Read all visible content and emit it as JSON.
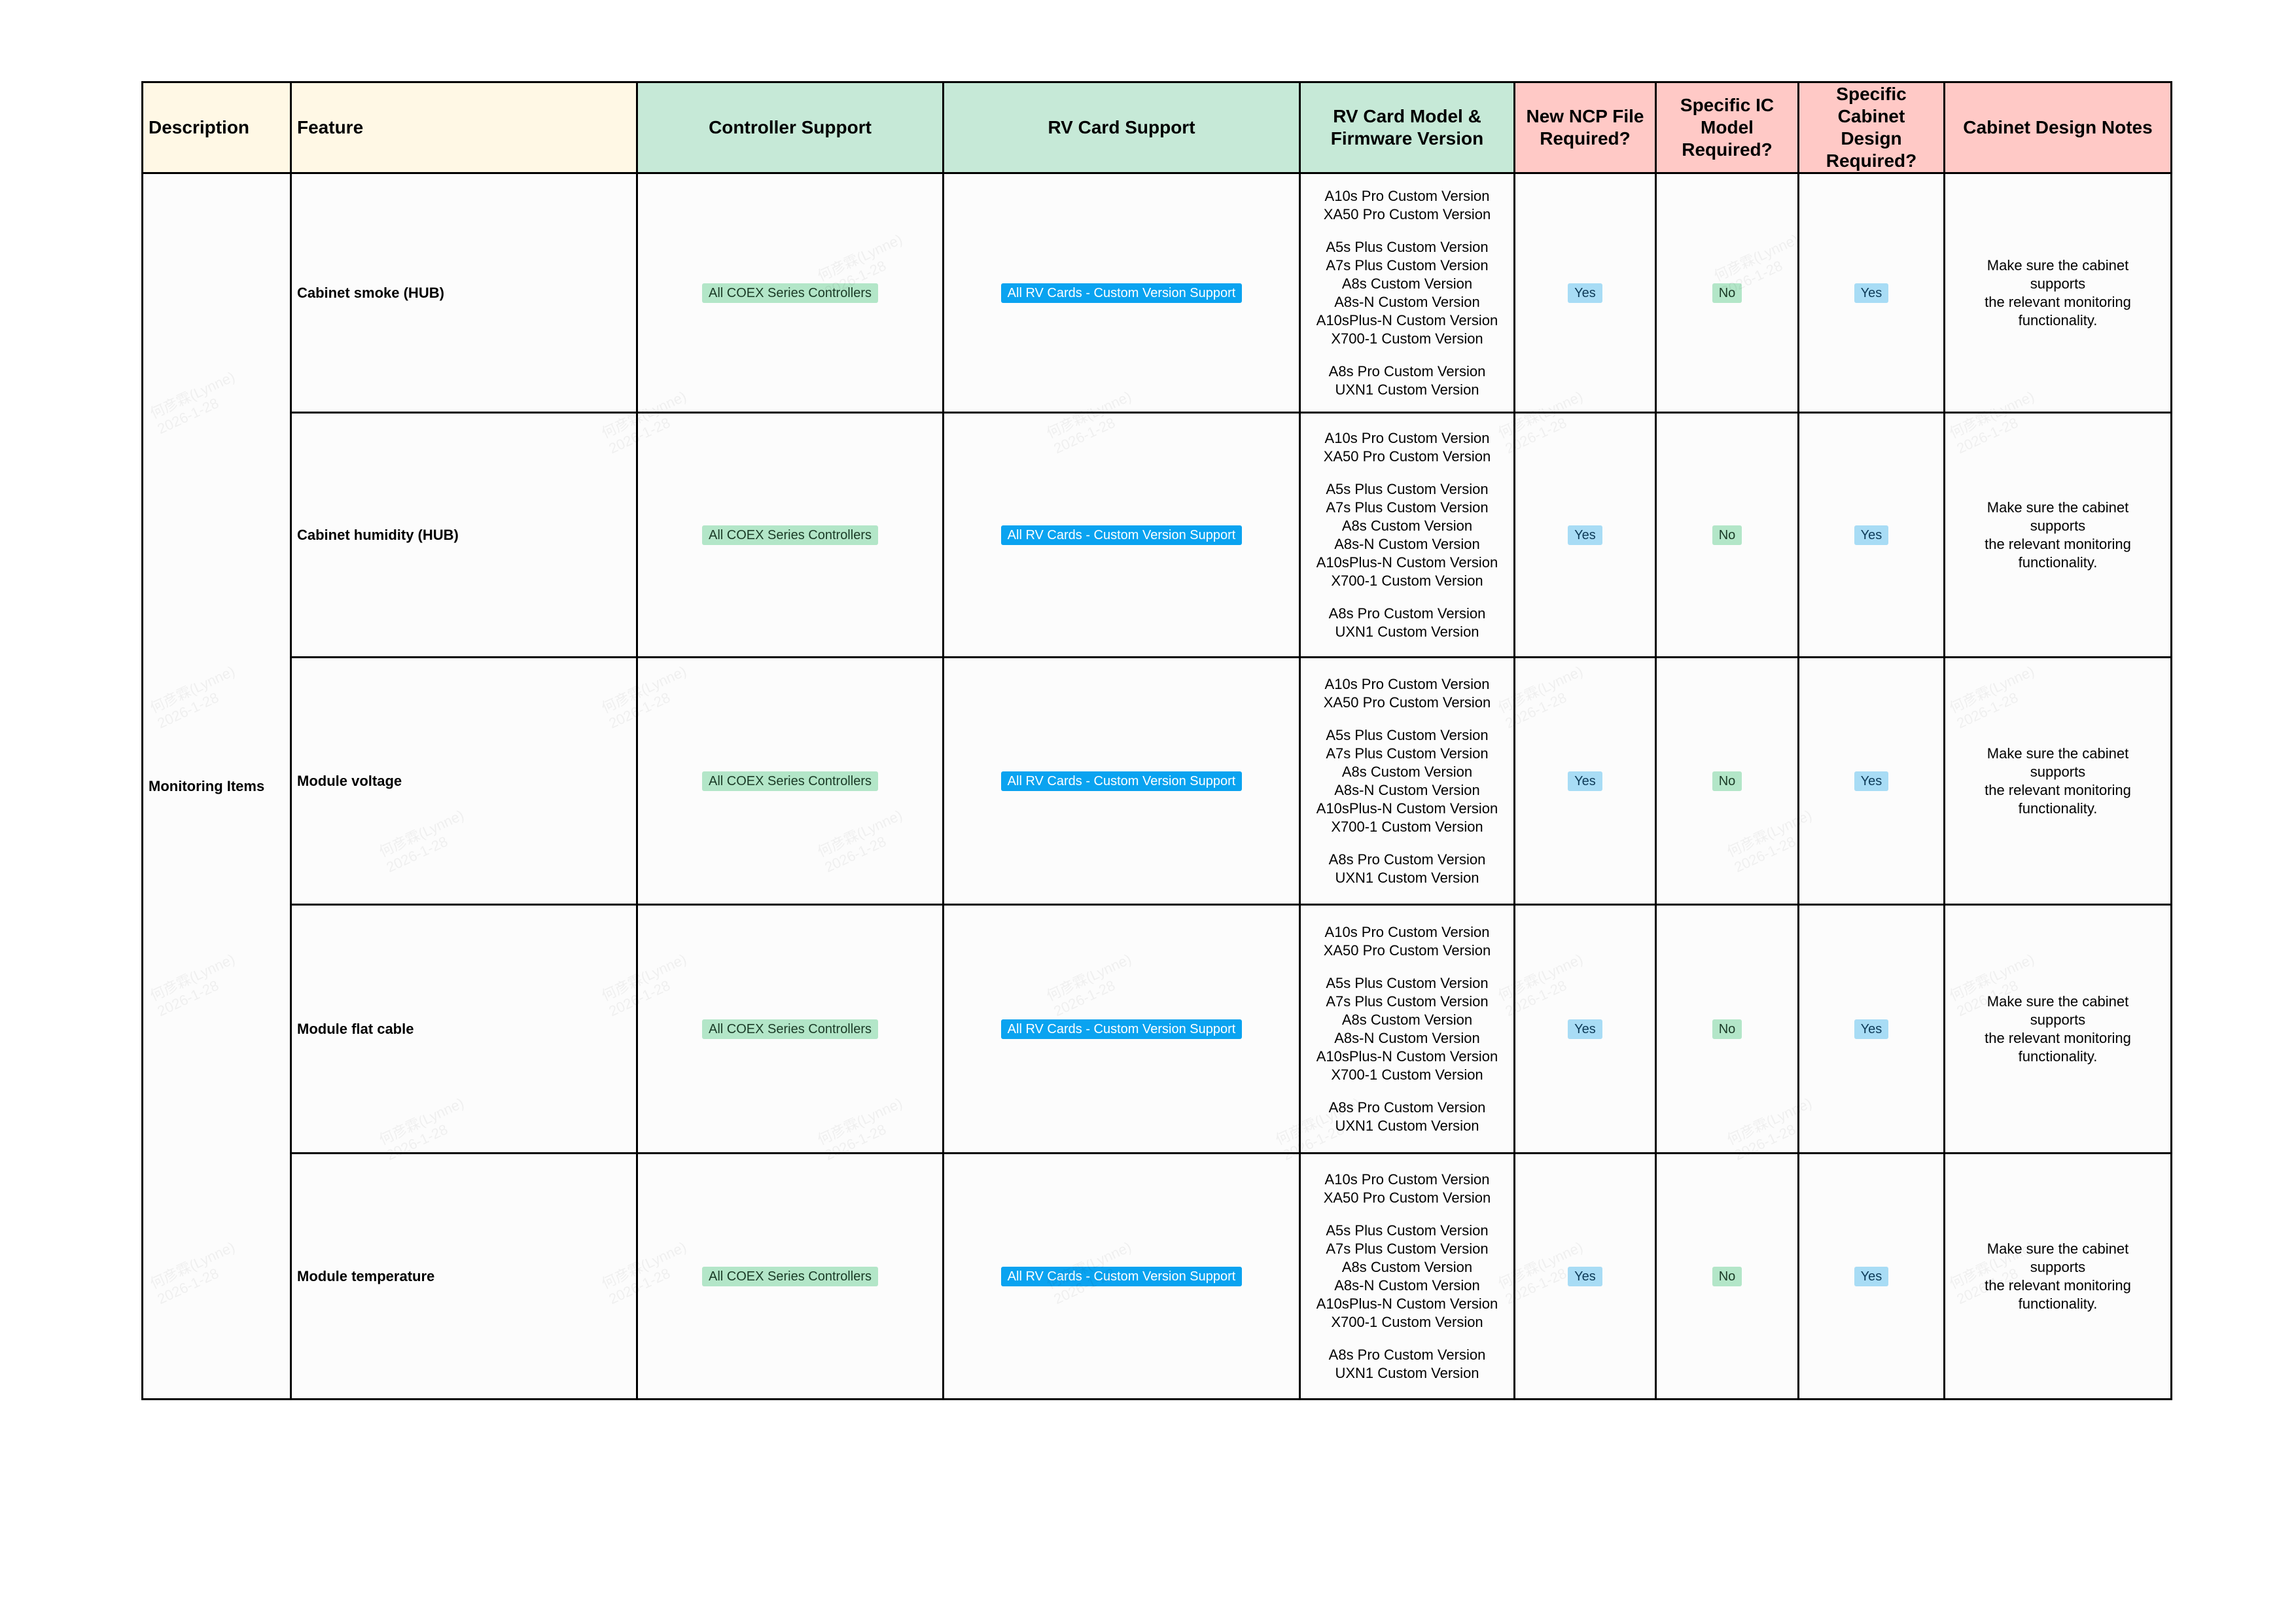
{
  "headers": {
    "description": "Description",
    "feature": "Feature",
    "controller_support": "Controller Support",
    "rv_card_support": "RV Card Support",
    "rv_card_model": "RV Card Model & Firmware Version",
    "new_ncp": "New NCP File Required?",
    "specific_ic": "Specific IC Model Required?",
    "specific_cabinet": "Specific Cabinet Design Required?",
    "cabinet_notes": "Cabinet Design Notes"
  },
  "description": "Monitoring Items",
  "rows": [
    {
      "feature": "Cabinet smoke (HUB)",
      "controller": "All COEX Series Controllers",
      "rv_card": "All RV Cards - Custom Version Support",
      "versions": [
        [
          "A10s Pro Custom Version",
          "XA50 Pro Custom Version"
        ],
        [
          "A5s Plus Custom Version",
          "A7s Plus Custom Version",
          "A8s Custom Version",
          "A8s-N Custom Version",
          "A10sPlus-N Custom Version",
          "X700-1 Custom Version"
        ],
        [
          "A8s Pro Custom Version",
          "UXN1 Custom Version"
        ]
      ],
      "ncp": "Yes",
      "ic": "No",
      "cabinet": "Yes",
      "notes": [
        "Make sure the cabinet",
        "supports",
        "the relevant monitoring",
        "functionality."
      ]
    },
    {
      "feature": "Cabinet humidity (HUB)",
      "controller": "All COEX Series Controllers",
      "rv_card": "All RV Cards - Custom Version Support",
      "versions": [
        [
          "A10s Pro Custom Version",
          "XA50 Pro Custom Version"
        ],
        [
          "A5s Plus Custom Version",
          "A7s Plus Custom Version",
          "A8s Custom Version",
          "A8s-N Custom Version",
          "A10sPlus-N Custom Version",
          "X700-1 Custom Version"
        ],
        [
          "A8s Pro Custom Version",
          "UXN1 Custom Version"
        ]
      ],
      "ncp": "Yes",
      "ic": "No",
      "cabinet": "Yes",
      "notes": [
        "Make sure the cabinet",
        "supports",
        "the relevant monitoring",
        "functionality."
      ]
    },
    {
      "feature": "Module voltage",
      "controller": "All COEX Series Controllers",
      "rv_card": "All RV Cards - Custom Version Support",
      "versions": [
        [
          "A10s Pro Custom Version",
          "XA50 Pro Custom Version"
        ],
        [
          "A5s Plus Custom Version",
          "A7s Plus Custom Version",
          "A8s Custom Version",
          "A8s-N Custom Version",
          "A10sPlus-N Custom Version",
          "X700-1 Custom Version"
        ],
        [
          "A8s Pro Custom Version",
          "UXN1 Custom Version"
        ]
      ],
      "ncp": "Yes",
      "ic": "No",
      "cabinet": "Yes",
      "notes": [
        "Make sure the cabinet",
        "supports",
        "the relevant monitoring",
        "functionality."
      ]
    },
    {
      "feature": "Module flat cable",
      "controller": "All COEX Series Controllers",
      "rv_card": "All RV Cards - Custom Version Support",
      "versions": [
        [
          "A10s Pro Custom Version",
          "XA50 Pro Custom Version"
        ],
        [
          "A5s Plus Custom Version",
          "A7s Plus Custom Version",
          "A8s Custom Version",
          "A8s-N Custom Version",
          "A10sPlus-N Custom Version",
          "X700-1 Custom Version"
        ],
        [
          "A8s Pro Custom Version",
          "UXN1 Custom Version"
        ]
      ],
      "ncp": "Yes",
      "ic": "No",
      "cabinet": "Yes",
      "notes": [
        "Make sure the cabinet",
        "supports",
        "the relevant monitoring",
        "functionality."
      ]
    },
    {
      "feature": "Module temperature",
      "controller": "All COEX Series Controllers",
      "rv_card": "All RV Cards - Custom Version Support",
      "versions": [
        [
          "A10s Pro Custom Version",
          "XA50 Pro Custom Version"
        ],
        [
          "A5s Plus Custom Version",
          "A7s Plus Custom Version",
          "A8s Custom Version",
          "A8s-N Custom Version",
          "A10sPlus-N Custom Version",
          "X700-1 Custom Version"
        ],
        [
          "A8s Pro Custom Version",
          "UXN1 Custom Version"
        ]
      ],
      "ncp": "Yes",
      "ic": "No",
      "cabinet": "Yes",
      "notes": [
        "Make sure the cabinet",
        "supports",
        "the relevant monitoring",
        "functionality."
      ]
    }
  ],
  "watermark": "何彦霖(Lynne)\n2026-1-28",
  "colors": {
    "header_desc": "#fff8e5",
    "header_green": "#c6e9d7",
    "header_pink": "#ffc9c6",
    "badge_green": "#b3e6c8",
    "badge_blue": "#0aa3f0",
    "badge_light_blue": "#a8dcf5"
  }
}
